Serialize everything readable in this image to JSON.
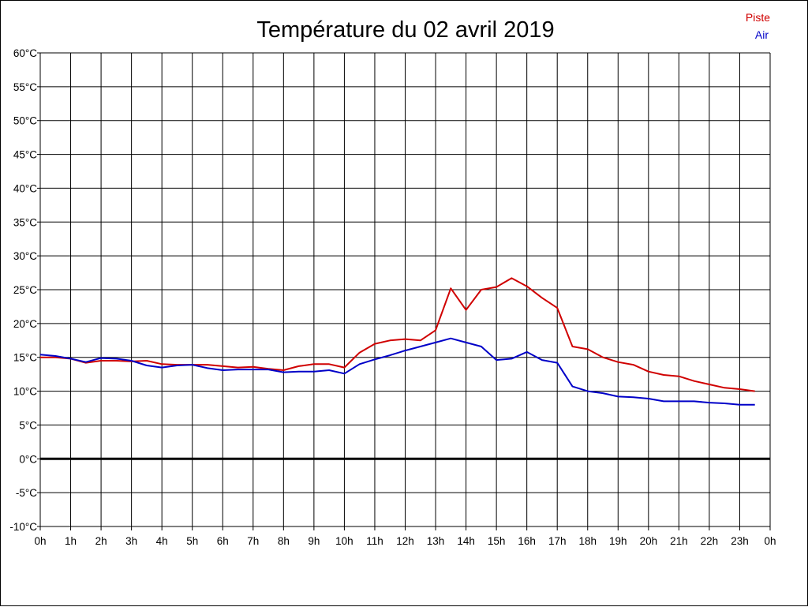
{
  "chart_data": {
    "type": "line",
    "title": "Température du 02 avril 2019",
    "xlabel": "",
    "ylabel": "",
    "x_ticks": [
      "0h",
      "1h",
      "2h",
      "3h",
      "4h",
      "5h",
      "6h",
      "7h",
      "8h",
      "9h",
      "10h",
      "11h",
      "12h",
      "13h",
      "14h",
      "15h",
      "16h",
      "17h",
      "18h",
      "19h",
      "20h",
      "21h",
      "22h",
      "23h",
      "0h"
    ],
    "y_ticks": [
      "-10°C",
      "-5°C",
      "0°C",
      "5°C",
      "10°C",
      "15°C",
      "20°C",
      "25°C",
      "30°C",
      "35°C",
      "40°C",
      "45°C",
      "50°C",
      "55°C",
      "60°C"
    ],
    "xlim": [
      0,
      24
    ],
    "ylim": [
      -10,
      60
    ],
    "grid": true,
    "zero_line": true,
    "legend_position": "top-right",
    "x": [
      0,
      0.5,
      1,
      1.5,
      2,
      2.5,
      3,
      3.5,
      4,
      4.5,
      5,
      5.5,
      6,
      6.5,
      7,
      7.5,
      8,
      8.5,
      9,
      9.5,
      10,
      10.5,
      11,
      11.5,
      12,
      12.5,
      13,
      13.5,
      14,
      14.5,
      15,
      15.5,
      16,
      16.5,
      17,
      17.5,
      18,
      18.5,
      19,
      19.5,
      20,
      20.5,
      21,
      21.5,
      22,
      22.5,
      23,
      23.5
    ],
    "series": [
      {
        "name": "Piste",
        "color": "#d00000",
        "values": [
          15.0,
          15.0,
          14.8,
          14.2,
          14.5,
          14.5,
          14.4,
          14.5,
          14.0,
          13.9,
          13.9,
          13.9,
          13.7,
          13.5,
          13.6,
          13.3,
          13.1,
          13.7,
          14.0,
          14.0,
          13.5,
          15.7,
          17.0,
          17.5,
          17.7,
          17.5,
          19.0,
          25.2,
          22.0,
          25.0,
          25.4,
          26.7,
          25.5,
          23.8,
          22.3,
          16.6,
          16.2,
          15.0,
          14.3,
          13.9,
          12.9,
          12.4,
          12.2,
          11.5,
          11.0,
          10.5,
          10.3,
          10.0
        ]
      },
      {
        "name": "Air",
        "color": "#0000c8",
        "values": [
          15.4,
          15.2,
          14.8,
          14.3,
          14.9,
          14.8,
          14.5,
          13.8,
          13.5,
          13.8,
          13.9,
          13.4,
          13.1,
          13.2,
          13.2,
          13.2,
          12.8,
          12.9,
          12.9,
          13.1,
          12.6,
          14.0,
          14.7,
          15.3,
          16.0,
          16.6,
          17.2,
          17.8,
          17.2,
          16.6,
          14.6,
          14.8,
          15.8,
          14.6,
          14.2,
          10.7,
          10.0,
          9.7,
          9.2,
          9.1,
          8.9,
          8.5,
          8.5,
          8.5,
          8.3,
          8.2,
          8.0,
          8.0
        ]
      }
    ]
  }
}
